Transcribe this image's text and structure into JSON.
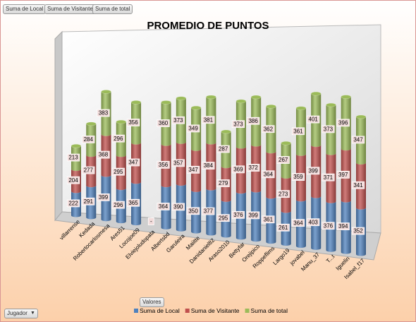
{
  "ui": {
    "field_buttons": [
      "Suma de Local",
      "Suma de Visitante",
      "Suma de total"
    ],
    "values_button": "Valores",
    "row_field": "Jugador"
  },
  "chart_data": {
    "type": "bar",
    "stacked": true,
    "title": "PROMEDIO DE PUNTOS",
    "categories": [
      "villarrense",
      "Kedada",
      "Robertocarlosmesa",
      "Ares51",
      "Locojoe09",
      "Elviejoludopata",
      "Albertsbd",
      "Garuleira",
      "Maiitte",
      "Danidaniel82",
      "Araso2010",
      "Bettyfar",
      "Orejipico",
      "Roppeflims",
      "Largo19",
      "jovabel",
      "Manu_37",
      "T...t",
      "Iguelin",
      "Isabel_f17"
    ],
    "series": [
      {
        "name": "Suma de Local",
        "color": "#4f81bd",
        "values": [
          222,
          291,
          399,
          296,
          365,
          null,
          364,
          390,
          350,
          377,
          295,
          376,
          399,
          361,
          261,
          364,
          403,
          376,
          394,
          352
        ],
        "value_labels": [
          "222",
          "291",
          "399",
          "296",
          "365",
          "-",
          "364",
          "390",
          "350",
          "377",
          "295",
          "376",
          "399",
          "361",
          "261",
          "364",
          "403",
          "376",
          "394",
          "352"
        ]
      },
      {
        "name": "Suma de Visitante",
        "color": "#c0504d",
        "values": [
          204,
          277,
          368,
          295,
          347,
          null,
          356,
          357,
          347,
          384,
          279,
          369,
          372,
          364,
          273,
          359,
          399,
          371,
          397,
          341
        ]
      },
      {
        "name": "Suma de total",
        "color": "#9bbb59",
        "values": [
          213,
          284,
          383,
          296,
          356,
          null,
          360,
          373,
          349,
          381,
          287,
          373,
          386,
          362,
          267,
          361,
          401,
          373,
          396,
          347
        ]
      }
    ],
    "legend": "bottom"
  }
}
